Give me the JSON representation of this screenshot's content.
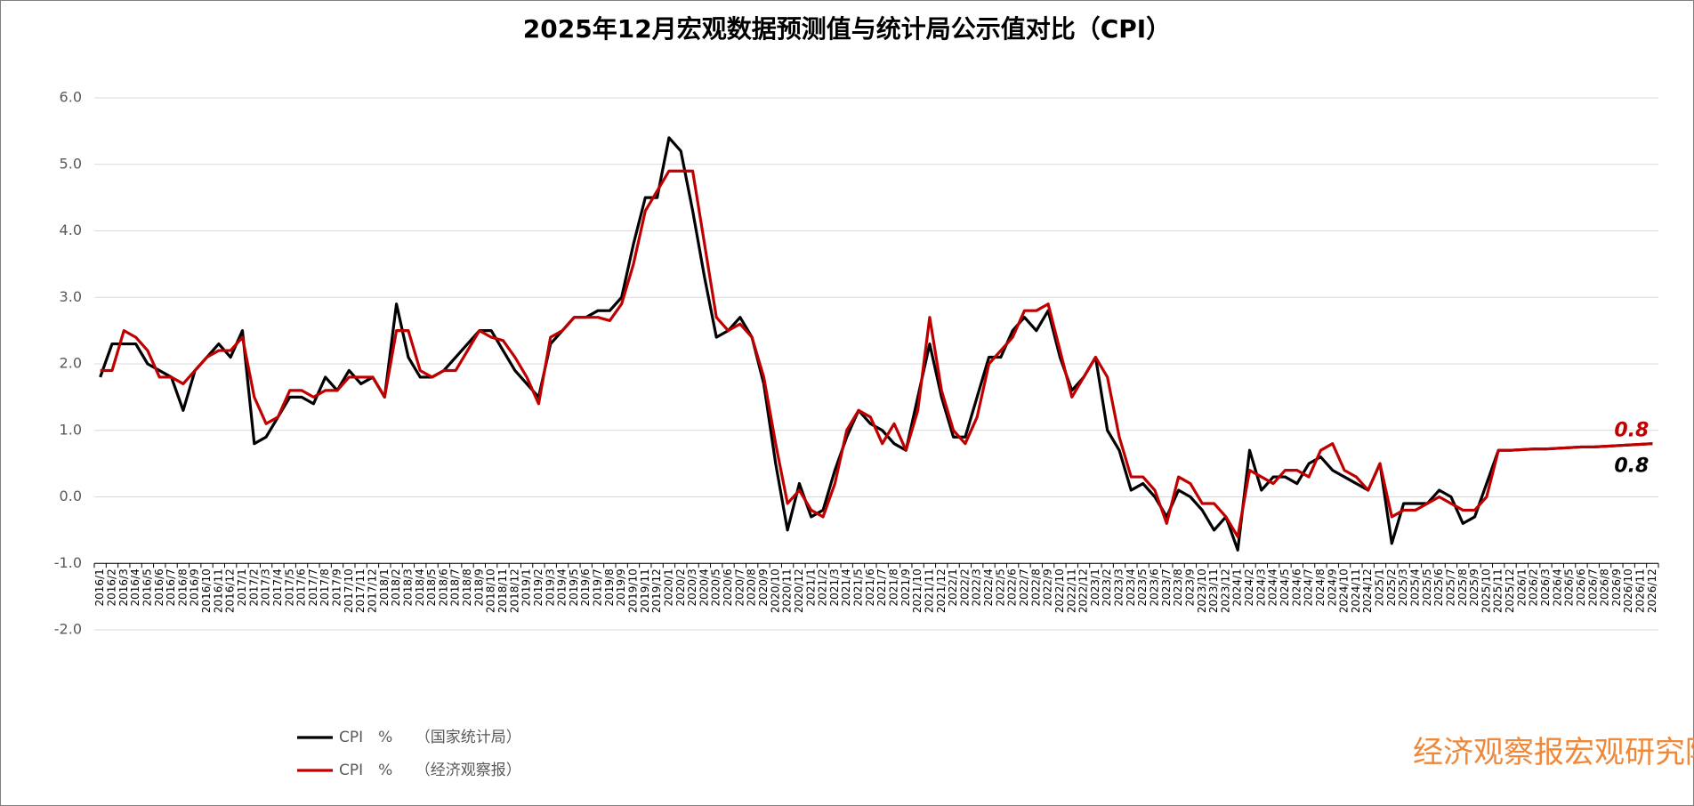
{
  "chart_data": {
    "type": "line",
    "title": "2025年12月宏观数据预测值与统计局公示值对比（CPI）",
    "categories": [
      "2016/1",
      "2016/2",
      "2016/3",
      "2016/4",
      "2016/5",
      "2016/6",
      "2016/7",
      "2016/8",
      "2016/9",
      "2016/10",
      "2016/11",
      "2016/12",
      "2017/1",
      "2017/2",
      "2017/3",
      "2017/4",
      "2017/5",
      "2017/6",
      "2017/7",
      "2017/8",
      "2017/9",
      "2017/10",
      "2017/11",
      "2017/12",
      "2018/1",
      "2018/2",
      "2018/3",
      "2018/4",
      "2018/5",
      "2018/6",
      "2018/7",
      "2018/8",
      "2018/9",
      "2018/10",
      "2018/11",
      "2018/12",
      "2019/1",
      "2019/2",
      "2019/3",
      "2019/4",
      "2019/5",
      "2019/6",
      "2019/7",
      "2019/8",
      "2019/9",
      "2019/10",
      "2019/11",
      "2019/12",
      "2020/1",
      "2020/2",
      "2020/3",
      "2020/4",
      "2020/5",
      "2020/6",
      "2020/7",
      "2020/8",
      "2020/9",
      "2020/10",
      "2020/11",
      "2020/12",
      "2021/1",
      "2021/2",
      "2021/3",
      "2021/4",
      "2021/5",
      "2021/6",
      "2021/7",
      "2021/8",
      "2021/9",
      "2021/10",
      "2021/11",
      "2021/12",
      "2022/1",
      "2022/2",
      "2022/3",
      "2022/4",
      "2022/5",
      "2022/6",
      "2022/7",
      "2022/8",
      "2022/9",
      "2022/10",
      "2022/11",
      "2022/12",
      "2023/1",
      "2023/2",
      "2023/3",
      "2023/4",
      "2023/5",
      "2023/6",
      "2023/7",
      "2023/8",
      "2023/9",
      "2023/10",
      "2023/11",
      "2023/12",
      "2024/1",
      "2024/2",
      "2024/3",
      "2024/4",
      "2024/5",
      "2024/6",
      "2024/7",
      "2024/8",
      "2024/9",
      "2024/10",
      "2024/11",
      "2024/12",
      "2025/1",
      "2025/2",
      "2025/3",
      "2025/4",
      "2025/5",
      "2025/6",
      "2025/7",
      "2025/8",
      "2025/9",
      "2025/10",
      "2025/11",
      "2025/12",
      "2026/1",
      "2026/2",
      "2026/3",
      "2026/4",
      "2026/5",
      "2026/6",
      "2026/7",
      "2026/8",
      "2026/9",
      "2026/10",
      "2026/11",
      "2026/12"
    ],
    "series": [
      {
        "name": "CPI　%　　（国家统计局）",
        "color": "#000000",
        "values": [
          1.8,
          2.3,
          2.3,
          2.3,
          2.0,
          1.9,
          1.8,
          1.3,
          1.9,
          2.1,
          2.3,
          2.1,
          2.5,
          0.8,
          0.9,
          1.2,
          1.5,
          1.5,
          1.4,
          1.8,
          1.6,
          1.9,
          1.7,
          1.8,
          1.5,
          2.9,
          2.1,
          1.8,
          1.8,
          1.9,
          2.1,
          2.3,
          2.5,
          2.5,
          2.2,
          1.9,
          1.7,
          1.5,
          2.3,
          2.5,
          2.7,
          2.7,
          2.8,
          2.8,
          3.0,
          3.8,
          4.5,
          4.5,
          5.4,
          5.2,
          4.3,
          3.3,
          2.4,
          2.5,
          2.7,
          2.4,
          1.7,
          0.5,
          -0.5,
          0.2,
          -0.3,
          -0.2,
          0.4,
          0.9,
          1.3,
          1.1,
          1.0,
          0.8,
          0.7,
          1.5,
          2.3,
          1.5,
          0.9,
          0.9,
          1.5,
          2.1,
          2.1,
          2.5,
          2.7,
          2.5,
          2.8,
          2.1,
          1.6,
          1.8,
          2.1,
          1.0,
          0.7,
          0.1,
          0.2,
          0.0,
          -0.3,
          0.1,
          0.0,
          -0.2,
          -0.5,
          -0.3,
          -0.8,
          0.7,
          0.1,
          0.3,
          0.3,
          0.2,
          0.5,
          0.6,
          0.4,
          0.3,
          0.2,
          0.1,
          0.5,
          -0.7,
          -0.1,
          -0.1,
          -0.1,
          0.1,
          0.0,
          -0.4,
          -0.3,
          0.2,
          0.7,
          0.7,
          0.71,
          0.72,
          0.72,
          0.73,
          0.74,
          0.75,
          0.75,
          0.76,
          0.77,
          0.78,
          0.79,
          0.8
        ]
      },
      {
        "name": "CPI　%　　（经济观察报）",
        "color": "#c00000",
        "values": [
          1.9,
          1.9,
          2.5,
          2.4,
          2.2,
          1.8,
          1.8,
          1.7,
          1.9,
          2.1,
          2.2,
          2.2,
          2.4,
          1.5,
          1.1,
          1.2,
          1.6,
          1.6,
          1.5,
          1.6,
          1.6,
          1.8,
          1.8,
          1.8,
          1.5,
          2.5,
          2.5,
          1.9,
          1.8,
          1.9,
          1.9,
          2.2,
          2.5,
          2.4,
          2.35,
          2.1,
          1.8,
          1.4,
          2.4,
          2.5,
          2.7,
          2.7,
          2.7,
          2.65,
          2.9,
          3.5,
          4.3,
          4.6,
          4.9,
          4.9,
          4.9,
          3.8,
          2.7,
          2.5,
          2.6,
          2.4,
          1.8,
          0.8,
          -0.1,
          0.1,
          -0.2,
          -0.3,
          0.2,
          1.0,
          1.3,
          1.2,
          0.8,
          1.1,
          0.7,
          1.3,
          2.7,
          1.6,
          1.0,
          0.8,
          1.2,
          2.0,
          2.2,
          2.4,
          2.8,
          2.8,
          2.9,
          2.2,
          1.5,
          1.8,
          2.1,
          1.8,
          0.9,
          0.3,
          0.3,
          0.1,
          -0.4,
          0.3,
          0.2,
          -0.1,
          -0.1,
          -0.3,
          -0.6,
          0.4,
          0.3,
          0.2,
          0.4,
          0.4,
          0.3,
          0.7,
          0.8,
          0.4,
          0.3,
          0.1,
          0.5,
          -0.3,
          -0.2,
          -0.2,
          -0.1,
          0.0,
          -0.1,
          -0.2,
          -0.2,
          0.0,
          0.7,
          0.7,
          0.71,
          0.72,
          0.72,
          0.73,
          0.74,
          0.75,
          0.75,
          0.76,
          0.77,
          0.78,
          0.79,
          0.8
        ]
      }
    ],
    "ylim": [
      -2,
      6
    ],
    "yticks": [
      {
        "value": -2,
        "label": "-2.0"
      },
      {
        "value": -1,
        "label": "-1.0"
      },
      {
        "value": 0,
        "label": "0.0"
      },
      {
        "value": 1,
        "label": "1.0"
      },
      {
        "value": 2,
        "label": "2.0"
      },
      {
        "value": 3,
        "label": "3.0"
      },
      {
        "value": 4,
        "label": "4.0"
      },
      {
        "value": 5,
        "label": "5.0"
      },
      {
        "value": 6,
        "label": "6.0"
      }
    ],
    "x_axis_crossing": -1,
    "grid": true,
    "legend": "bottom-left",
    "source": "经济观察报宏观研究院制图"
  }
}
